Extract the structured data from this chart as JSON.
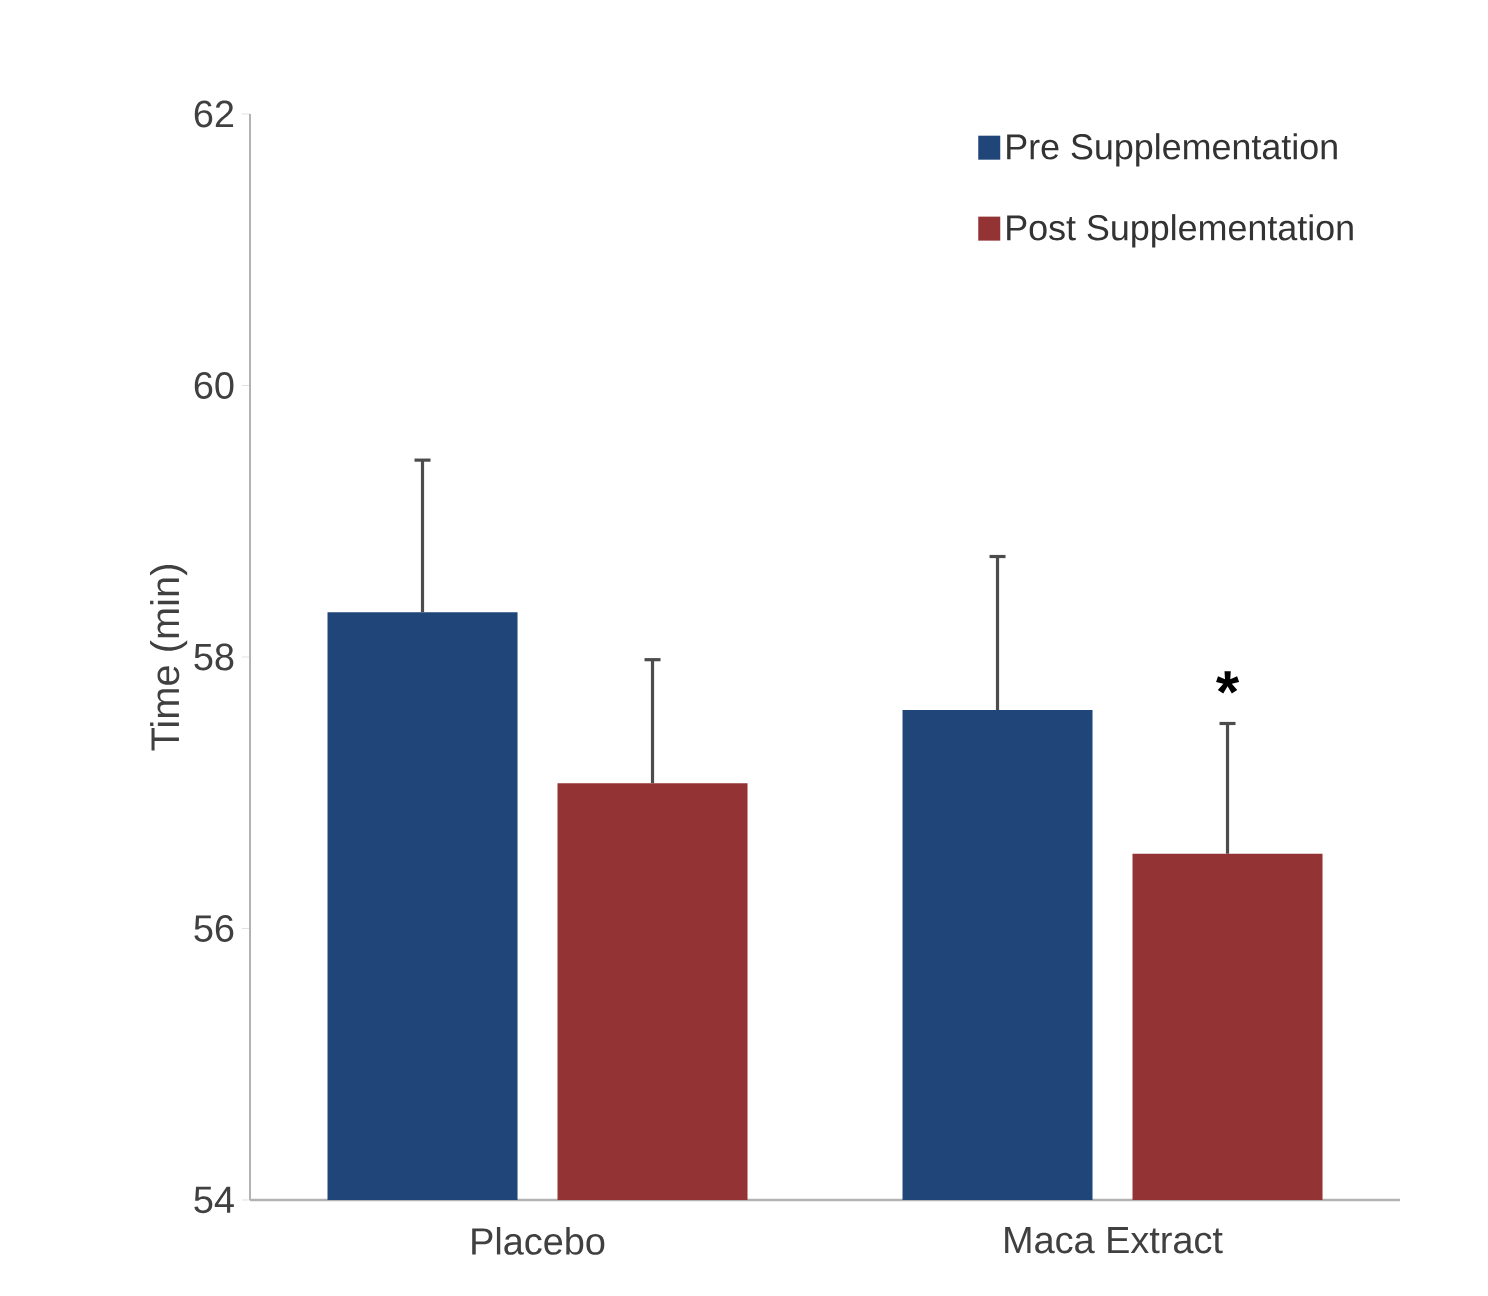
{
  "chart_data": {
    "type": "bar",
    "ylabel": "Time (min)",
    "categories": [
      "Placebo",
      "Maca Extract"
    ],
    "series": [
      {
        "name": "Pre Supplementation",
        "color": "#1f4579",
        "values": [
          58.33,
          57.61
        ],
        "errors": [
          1.12,
          1.13
        ]
      },
      {
        "name": "Post Supplementation",
        "color": "#943333",
        "values": [
          57.07,
          56.55
        ],
        "errors": [
          0.91,
          0.96
        ]
      }
    ],
    "ylim": [
      54,
      62
    ],
    "yticks": [
      54,
      56,
      58,
      60,
      62
    ],
    "annotations": [
      "*"
    ],
    "grid": false,
    "legend": "top right"
  }
}
